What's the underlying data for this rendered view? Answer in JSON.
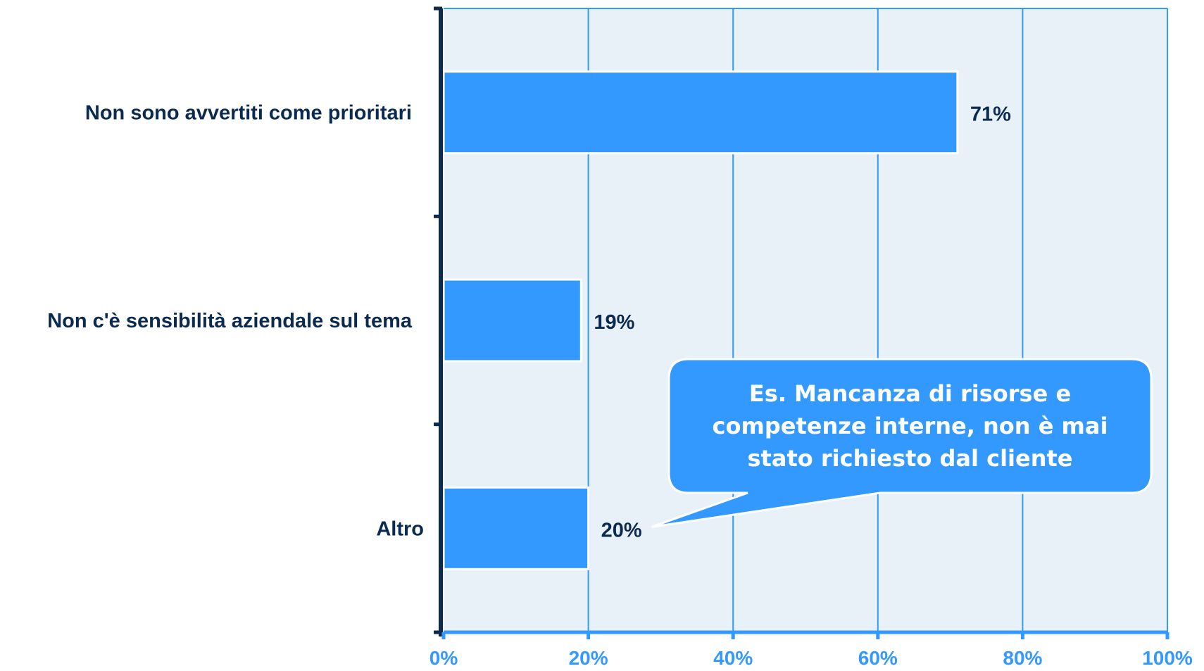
{
  "chart_data": {
    "type": "bar",
    "orientation": "horizontal",
    "categories": [
      "Non sono avvertiti come prioritari",
      "Non c'è sensibilità aziendale sul tema",
      "Altro"
    ],
    "values": [
      71,
      19,
      20
    ],
    "value_labels": [
      "71%",
      "19%",
      "20%"
    ],
    "xlim": [
      0,
      100
    ],
    "x_ticks": [
      0,
      20,
      40,
      60,
      80,
      100
    ],
    "x_tick_labels": [
      "0%",
      "20%",
      "40%",
      "60%",
      "80%",
      "100%"
    ],
    "grid": true,
    "legend": "none",
    "annotation": {
      "target_category": "Altro",
      "lines": [
        "Es. Mancanza di risorse e",
        "competenze interne, non è mai",
        "stato richiesto dal cliente"
      ]
    },
    "colors": {
      "bar": "#3399ff",
      "plot_background": "#e8f1f8",
      "grid": "#3399ff",
      "axis": "#0b2a4f",
      "label_text": "#0b2a4f",
      "tick_text": "#3399ff",
      "callout_fill": "#3399ff",
      "callout_text": "#ffffff"
    }
  }
}
